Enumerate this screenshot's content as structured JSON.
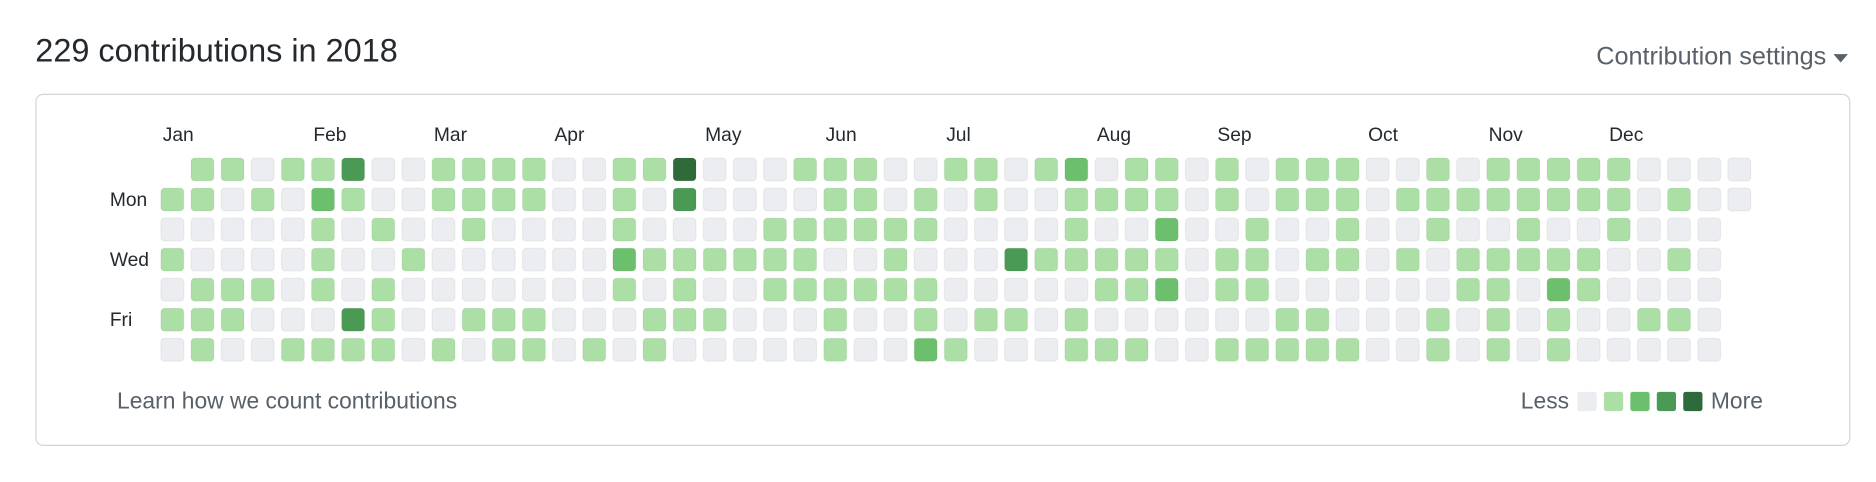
{
  "header": {
    "title": "229 contributions in 2018",
    "settings": "Contribution settings"
  },
  "months": [
    "Jan",
    "Feb",
    "Mar",
    "Apr",
    "May",
    "Jun",
    "Jul",
    "Aug",
    "Sep",
    "Oct",
    "Nov",
    "Dec"
  ],
  "days": [
    "Mon",
    "Wed",
    "Fri"
  ],
  "colors": [
    "#ebedf0",
    "#acdfa6",
    "#6cc06d",
    "#4a9a56",
    "#2f6b3a"
  ],
  "rows": [
    [
      null,
      1,
      1,
      0,
      1,
      1,
      3,
      0,
      0,
      1,
      1,
      1,
      1,
      0,
      0,
      1,
      1,
      4,
      0,
      0,
      0,
      1,
      1,
      1,
      0,
      0,
      1,
      1,
      0,
      1,
      2,
      0,
      1,
      1,
      0,
      1,
      0,
      1,
      1,
      1,
      0,
      0,
      1,
      0,
      1,
      1,
      1,
      1,
      1,
      0,
      0,
      0,
      0
    ],
    [
      1,
      1,
      0,
      1,
      0,
      2,
      1,
      0,
      0,
      1,
      1,
      1,
      1,
      0,
      0,
      1,
      0,
      3,
      0,
      0,
      0,
      0,
      1,
      1,
      0,
      1,
      0,
      1,
      0,
      0,
      1,
      1,
      1,
      1,
      0,
      1,
      0,
      1,
      1,
      1,
      0,
      1,
      1,
      1,
      1,
      1,
      1,
      1,
      1,
      0,
      1,
      0,
      0
    ],
    [
      0,
      0,
      0,
      0,
      0,
      1,
      0,
      1,
      0,
      0,
      1,
      0,
      0,
      0,
      0,
      1,
      0,
      0,
      0,
      0,
      1,
      1,
      1,
      1,
      1,
      1,
      0,
      0,
      0,
      0,
      1,
      0,
      0,
      2,
      0,
      0,
      1,
      0,
      0,
      1,
      0,
      0,
      1,
      0,
      0,
      1,
      0,
      0,
      1,
      0,
      0,
      0,
      null
    ],
    [
      1,
      0,
      0,
      0,
      0,
      1,
      0,
      0,
      1,
      0,
      0,
      0,
      0,
      0,
      0,
      2,
      1,
      1,
      1,
      1,
      1,
      1,
      0,
      0,
      1,
      0,
      0,
      0,
      3,
      1,
      1,
      1,
      1,
      1,
      0,
      1,
      1,
      0,
      1,
      1,
      0,
      1,
      0,
      1,
      1,
      1,
      1,
      1,
      0,
      0,
      1,
      0,
      null
    ],
    [
      0,
      1,
      1,
      1,
      0,
      1,
      0,
      1,
      0,
      0,
      0,
      0,
      0,
      0,
      0,
      1,
      0,
      1,
      0,
      0,
      1,
      1,
      1,
      1,
      1,
      1,
      0,
      0,
      0,
      0,
      0,
      1,
      1,
      2,
      0,
      1,
      1,
      0,
      0,
      0,
      0,
      0,
      0,
      1,
      1,
      0,
      2,
      1,
      0,
      0,
      0,
      0,
      null
    ],
    [
      1,
      1,
      1,
      0,
      0,
      0,
      3,
      1,
      0,
      0,
      1,
      1,
      1,
      0,
      0,
      0,
      1,
      1,
      1,
      0,
      0,
      0,
      1,
      0,
      0,
      1,
      0,
      1,
      1,
      0,
      1,
      0,
      0,
      0,
      0,
      0,
      0,
      1,
      1,
      0,
      0,
      0,
      1,
      0,
      1,
      0,
      1,
      0,
      0,
      1,
      1,
      0,
      null
    ],
    [
      0,
      1,
      0,
      0,
      1,
      1,
      1,
      1,
      0,
      1,
      0,
      1,
      1,
      0,
      1,
      0,
      1,
      0,
      0,
      0,
      0,
      0,
      1,
      0,
      0,
      2,
      1,
      0,
      0,
      0,
      1,
      1,
      1,
      0,
      0,
      1,
      1,
      1,
      1,
      1,
      0,
      0,
      1,
      0,
      1,
      0,
      1,
      0,
      0,
      0,
      0,
      0,
      null
    ]
  ],
  "footer": {
    "learn": "Learn how we count contributions",
    "less": "Less",
    "more": "More"
  },
  "legend_levels": [
    0,
    1,
    2,
    3,
    4
  ]
}
